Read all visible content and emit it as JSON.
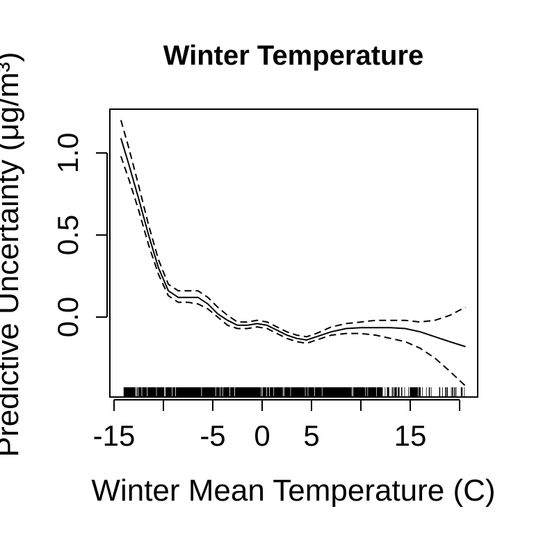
{
  "chart_data": {
    "type": "line",
    "title": "Winter Temperature",
    "xlabel": "Winter Mean Temperature (C)",
    "ylabel": "Predictive Uncertainty (μg/m³)",
    "xlim": [
      -15,
      21
    ],
    "ylim": [
      -0.5,
      1.3
    ],
    "xticks": [
      -15,
      -10,
      -5,
      0,
      5,
      10,
      15,
      20
    ],
    "xtick_labels": [
      "-15",
      "",
      "-5",
      "0",
      "5",
      "",
      "15",
      ""
    ],
    "yticks": [
      0.0,
      0.5,
      1.0
    ],
    "ytick_labels": [
      "0.0",
      "0.5",
      "1.0"
    ],
    "grid": false,
    "rug": true,
    "series": [
      {
        "role": "estimate",
        "line_style": "solid",
        "x": [
          -14.3,
          -13.5,
          -12.5,
          -11.5,
          -10.5,
          -9.5,
          -8.5,
          -7.5,
          -6.5,
          -5.5,
          -4.5,
          -3.5,
          -2.5,
          -1.5,
          -0.5,
          0.5,
          1.5,
          2.5,
          3.5,
          4.5,
          5.5,
          7,
          8.5,
          10,
          11.5,
          13,
          14.5,
          16,
          17.5,
          19,
          20.6
        ],
        "y": [
          1.09,
          0.93,
          0.72,
          0.5,
          0.3,
          0.16,
          0.12,
          0.12,
          0.12,
          0.08,
          0.02,
          -0.02,
          -0.05,
          -0.05,
          -0.04,
          -0.05,
          -0.08,
          -0.11,
          -0.13,
          -0.14,
          -0.12,
          -0.09,
          -0.07,
          -0.065,
          -0.065,
          -0.065,
          -0.07,
          -0.09,
          -0.12,
          -0.15,
          -0.18
        ]
      },
      {
        "role": "upper-bound",
        "line_style": "dashed",
        "x": [
          -14.3,
          -13.5,
          -12.5,
          -11.5,
          -10.5,
          -9.5,
          -8.5,
          -7.5,
          -6.5,
          -5.5,
          -4.5,
          -3.5,
          -2.5,
          -1.5,
          -0.5,
          0.5,
          1.5,
          2.5,
          3.5,
          4.5,
          5.5,
          7,
          8.5,
          10,
          11.5,
          13,
          14.5,
          16,
          17.5,
          19,
          20.6
        ],
        "y": [
          1.2,
          1.03,
          0.8,
          0.56,
          0.35,
          0.2,
          0.16,
          0.16,
          0.16,
          0.12,
          0.06,
          0.01,
          -0.03,
          -0.03,
          -0.02,
          -0.03,
          -0.06,
          -0.09,
          -0.11,
          -0.12,
          -0.1,
          -0.06,
          -0.04,
          -0.03,
          -0.02,
          -0.02,
          -0.02,
          -0.03,
          -0.02,
          0.01,
          0.06
        ]
      },
      {
        "role": "lower-bound",
        "line_style": "dashed",
        "x": [
          -14.3,
          -13.5,
          -12.5,
          -11.5,
          -10.5,
          -9.5,
          -8.5,
          -7.5,
          -6.5,
          -5.5,
          -4.5,
          -3.5,
          -2.5,
          -1.5,
          -0.5,
          0.5,
          1.5,
          2.5,
          3.5,
          4.5,
          5.5,
          7,
          8.5,
          10,
          11.5,
          13,
          14.5,
          16,
          17.5,
          19,
          20.6
        ],
        "y": [
          0.98,
          0.84,
          0.65,
          0.44,
          0.26,
          0.13,
          0.09,
          0.09,
          0.08,
          0.05,
          0.0,
          -0.05,
          -0.07,
          -0.07,
          -0.06,
          -0.07,
          -0.1,
          -0.13,
          -0.15,
          -0.16,
          -0.14,
          -0.11,
          -0.1,
          -0.1,
          -0.11,
          -0.13,
          -0.15,
          -0.19,
          -0.25,
          -0.33,
          -0.42
        ]
      }
    ]
  }
}
